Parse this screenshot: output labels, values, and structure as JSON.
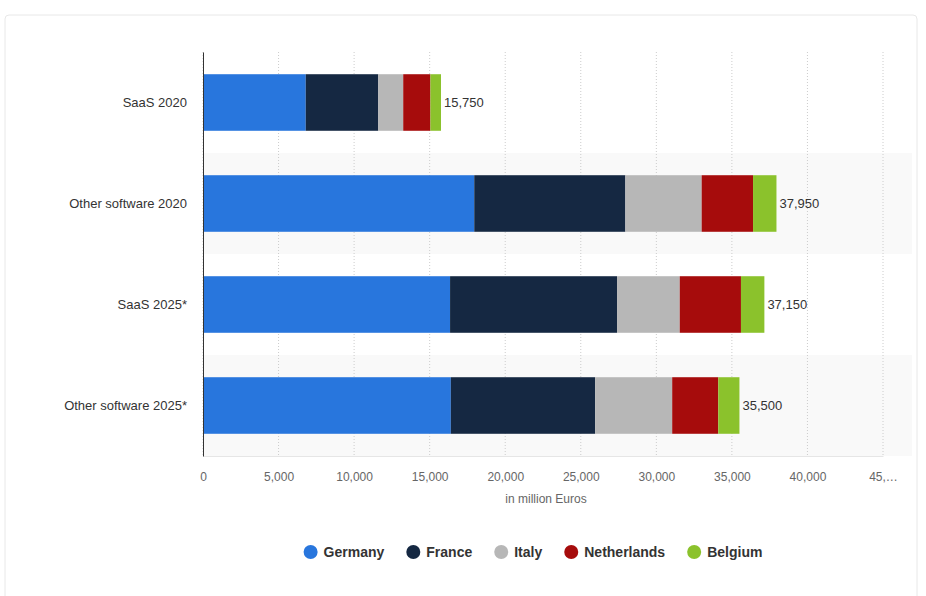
{
  "chart_data": {
    "type": "bar",
    "orientation": "horizontal",
    "stacked": true,
    "categories": [
      "SaaS 2020",
      "Other software 2020",
      "SaaS 2025*",
      "Other software 2025*"
    ],
    "series": [
      {
        "name": "Germany",
        "color": "#2876dd",
        "values": [
          6800,
          17950,
          16350,
          16400
        ]
      },
      {
        "name": "France",
        "color": "#152842",
        "values": [
          4800,
          10000,
          11050,
          9550
        ]
      },
      {
        "name": "Italy",
        "color": "#b7b7b7",
        "values": [
          1650,
          5050,
          4150,
          5100
        ]
      },
      {
        "name": "Netherlands",
        "color": "#a60c0c",
        "values": [
          1800,
          3400,
          4050,
          3050
        ]
      },
      {
        "name": "Belgium",
        "color": "#8bc22c",
        "values": [
          700,
          1550,
          1550,
          1400
        ]
      }
    ],
    "totals": [
      15750,
      37950,
      37150,
      35500
    ],
    "total_labels": [
      "15,750",
      "37,950",
      "37,150",
      "35,500"
    ],
    "x_label": "in million Euros",
    "xlim": [
      0,
      45000
    ],
    "xticks": [
      0,
      {
        "value": 5000,
        "label": "5,000"
      },
      {
        "value": 10000,
        "label": "10,000"
      },
      {
        "value": 15000,
        "label": "15,000"
      },
      {
        "value": 20000,
        "label": "20,000"
      },
      {
        "value": 25000,
        "label": "25,000"
      },
      {
        "value": 30000,
        "label": "30,000"
      },
      {
        "value": 35000,
        "label": "35,000"
      },
      {
        "value": 40000,
        "label": "40,000"
      },
      {
        "value": 45000,
        "label": "45,…"
      }
    ],
    "grid": true,
    "legend": "bottom"
  }
}
